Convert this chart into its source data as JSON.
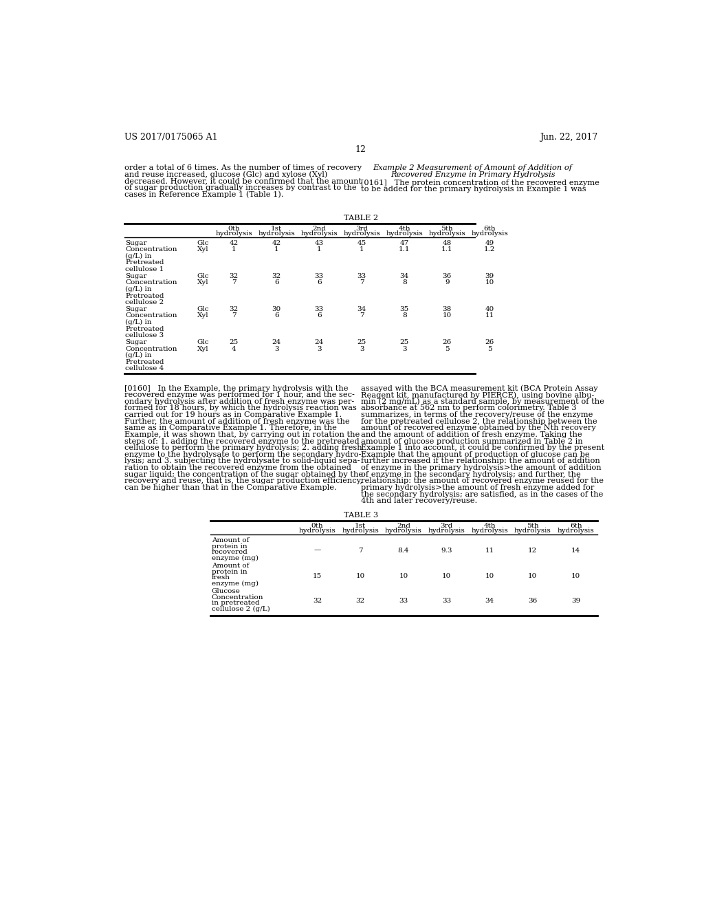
{
  "header_left": "US 2017/0175065 A1",
  "header_right": "Jun. 22, 2017",
  "page_number": "12",
  "left_col_text_top": [
    "order a total of 6 times. As the number of times of recovery",
    "and reuse increased, glucose (Glc) and xylose (Xyl)",
    "decreased. However, it could be confirmed that the amount",
    "of sugar production gradually increases by contrast to the",
    "cases in Reference Example 1 (Table 1)."
  ],
  "right_col_title_line1": "Example 2 Measurement of Amount of Addition of",
  "right_col_title_line2": "Recovered Enzyme in Primary Hydrolysis",
  "right_col_para1_lines": [
    "[0161]   The protein concentration of the recovered enzyme",
    "to be added for the primary hydrolysis in Example 1 was"
  ],
  "table2_title": "TABLE 2",
  "table2_col_headers": [
    "0th\nhydrolysis",
    "1st\nhydrolysis",
    "2nd\nhydrolysis",
    "3rd\nhydrolysis",
    "4th\nhydrolysis",
    "5th\nhydrolysis",
    "6th\nhydrolysis"
  ],
  "table2_rows": [
    [
      "Sugar",
      "Glc",
      "42",
      "42",
      "43",
      "45",
      "47",
      "48",
      "49"
    ],
    [
      "Concentration",
      "Xyl",
      "1",
      "1",
      "1",
      "1",
      "1.1",
      "1.1",
      "1.2"
    ],
    [
      "(g/L) in",
      "",
      "",
      "",
      "",
      "",
      "",
      "",
      ""
    ],
    [
      "Pretreated",
      "",
      "",
      "",
      "",
      "",
      "",
      "",
      ""
    ],
    [
      "cellulose 1",
      "",
      "",
      "",
      "",
      "",
      "",
      "",
      ""
    ],
    [
      "Sugar",
      "Glc",
      "32",
      "32",
      "33",
      "33",
      "34",
      "36",
      "39"
    ],
    [
      "Concentration",
      "Xyl",
      "7",
      "6",
      "6",
      "7",
      "8",
      "9",
      "10"
    ],
    [
      "(g/L) in",
      "",
      "",
      "",
      "",
      "",
      "",
      "",
      ""
    ],
    [
      "Pretreated",
      "",
      "",
      "",
      "",
      "",
      "",
      "",
      ""
    ],
    [
      "cellulose 2",
      "",
      "",
      "",
      "",
      "",
      "",
      "",
      ""
    ],
    [
      "Sugar",
      "Glc",
      "32",
      "30",
      "33",
      "34",
      "35",
      "38",
      "40"
    ],
    [
      "Concentration",
      "Xyl",
      "7",
      "6",
      "6",
      "7",
      "8",
      "10",
      "11"
    ],
    [
      "(g/L) in",
      "",
      "",
      "",
      "",
      "",
      "",
      "",
      ""
    ],
    [
      "Pretreated",
      "",
      "",
      "",
      "",
      "",
      "",
      "",
      ""
    ],
    [
      "cellulose 3",
      "",
      "",
      "",
      "",
      "",
      "",
      "",
      ""
    ],
    [
      "Sugar",
      "Glc",
      "25",
      "24",
      "24",
      "25",
      "25",
      "26",
      "26"
    ],
    [
      "Concentration",
      "Xyl",
      "4",
      "3",
      "3",
      "3",
      "3",
      "5",
      "5"
    ],
    [
      "(g/L) in",
      "",
      "",
      "",
      "",
      "",
      "",
      "",
      ""
    ],
    [
      "Pretreated",
      "",
      "",
      "",
      "",
      "",
      "",
      "",
      ""
    ],
    [
      "cellulose 4",
      "",
      "",
      "",
      "",
      "",
      "",
      "",
      ""
    ]
  ],
  "left_col_text_mid": [
    "[0160]   In the Example, the primary hydrolysis with the",
    "recovered enzyme was performed for 1 hour, and the sec-",
    "ondary hydrolysis after addition of fresh enzyme was per-",
    "formed for 18 hours, by which the hydrolysis reaction was",
    "carried out for 19 hours as in Comparative Example 1.",
    "Further, the amount of addition of fresh enzyme was the",
    "same as in Comparative Example 1. Therefore, in the",
    "Example, it was shown that, by carrying out in rotation the",
    "steps of: 1. adding the recovered enzyme to the pretreated",
    "cellulose to perform the primary hydrolysis; 2. adding fresh",
    "enzyme to the hydrolysate to perform the secondary hydro-",
    "lysis; and 3. subjecting the hydrolysate to solid-liquid sepa-",
    "ration to obtain the recovered enzyme from the obtained",
    "sugar liquid; the concentration of the sugar obtained by the",
    "recovery and reuse, that is, the sugar production efficiency,",
    "can be higher than that in the Comparative Example."
  ],
  "right_col_text_mid": [
    "assayed with the BCA measurement kit (BCA Protein Assay",
    "Reagent kit, manufactured by PIERCE), using bovine albu-",
    "min (2 mg/mL) as a standard sample, by measurement of the",
    "absorbance at 562 nm to perform colorimetry. Table 3",
    "summarizes, in terms of the recovery/reuse of the enzyme",
    "for the pretreated cellulose 2, the relationship between the",
    "amount of recovered enzyme obtained by the Nth recovery",
    "and the amount of addition of fresh enzyme. Taking the",
    "amount of glucose production summarized in Table 2 in",
    "Example 1 into account, it could be confirmed by the present",
    "Example that the amount of production of glucose can be",
    "further increased if the relationship: the amount of addition",
    "of enzyme in the primary hydrolysis>the amount of addition",
    "of enzyme in the secondary hydrolysis; and further, the",
    "relationship: the amount of recovered enzyme reused for the",
    "primary hydrolysis>the amount of fresh enzyme added for",
    "the secondary hydrolysis; are satisfied, as in the cases of the",
    "4th and later recovery/reuse."
  ],
  "table3_title": "TABLE 3",
  "table3_col_headers": [
    "",
    "0th\nhydrolysis",
    "1st\nhydrolysis",
    "2nd\nhydrolysis",
    "3rd\nhydrolysis",
    "4th\nhydrolysis",
    "5th\nhydrolysis",
    "6th\nhydrolysis"
  ],
  "table3_row_labels": [
    [
      "Amount of",
      "protein in",
      "recovered",
      "enzyme (mg)"
    ],
    [
      "Amount of",
      "protein in",
      "fresh",
      "enzyme (mg)"
    ],
    [
      "Glucose",
      "Concentration",
      "in pretreated",
      "cellulose 2 (g/L)"
    ]
  ],
  "table3_data": [
    [
      "—",
      "7",
      "8.4",
      "9.3",
      "11",
      "12",
      "14"
    ],
    [
      "15",
      "10",
      "10",
      "10",
      "10",
      "10",
      "10"
    ],
    [
      "32",
      "32",
      "33",
      "33",
      "34",
      "36",
      "39"
    ]
  ],
  "bg_color": "#ffffff",
  "text_color": "#000000",
  "line_color": "#000000"
}
